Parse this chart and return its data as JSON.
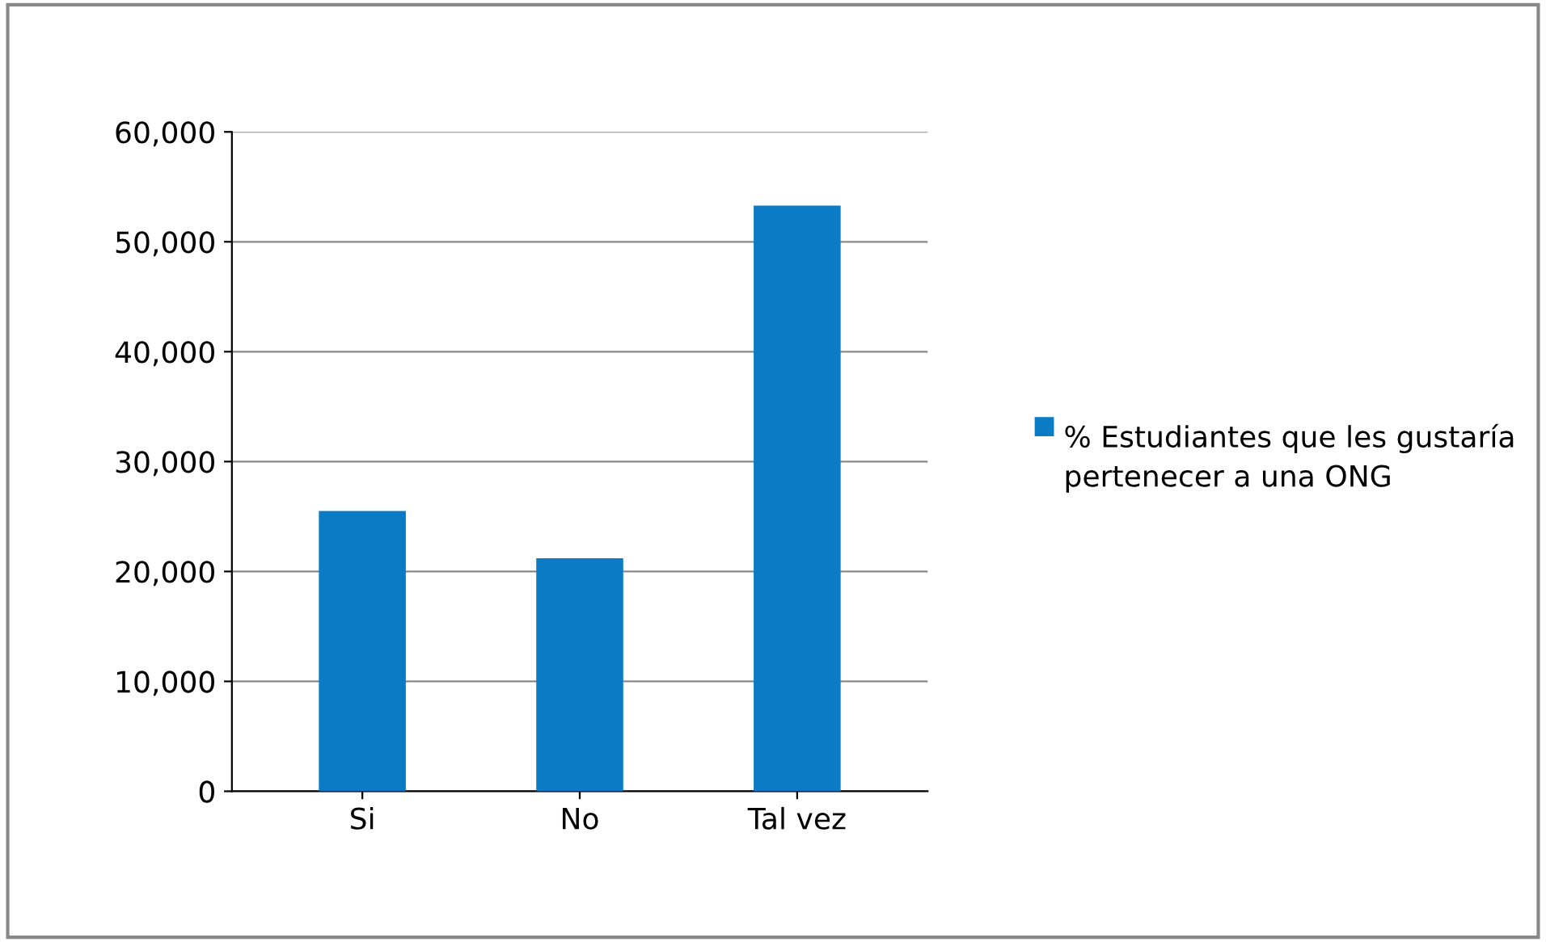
{
  "chart_data": {
    "type": "bar",
    "categories": [
      "Si",
      "No",
      "Tal vez"
    ],
    "series": [
      {
        "name": "% Estudiantes que les gustaría pertenecer a una ONG",
        "color": "#0a7bc4",
        "values": [
          25500,
          21200,
          53300
        ]
      }
    ],
    "ylim": [
      0,
      60000
    ],
    "yticks": [
      {
        "value": 0,
        "label": "0"
      },
      {
        "value": 10000,
        "label": "10,000"
      },
      {
        "value": 20000,
        "label": "20,000"
      },
      {
        "value": 30000,
        "label": "30,000"
      },
      {
        "value": 40000,
        "label": "40,000"
      },
      {
        "value": 50000,
        "label": "50,000"
      },
      {
        "value": 60000,
        "label": "60,000"
      }
    ],
    "grid": "y",
    "legend": "right"
  }
}
